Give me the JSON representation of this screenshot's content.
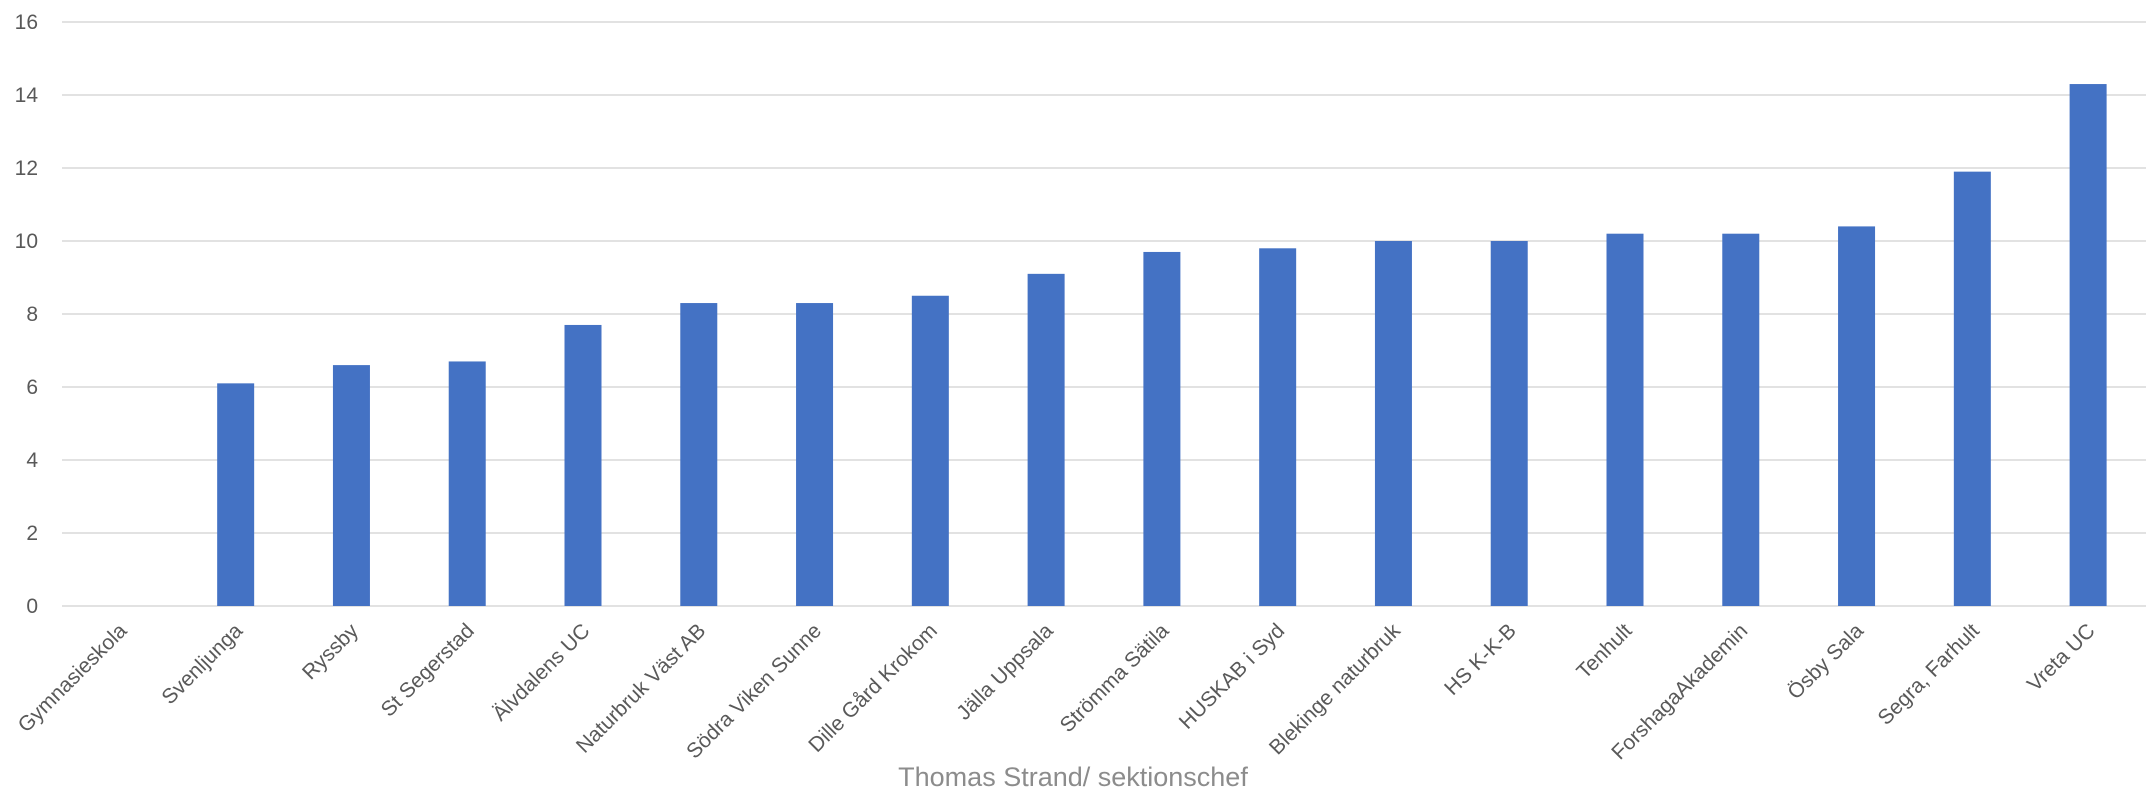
{
  "footer_text": "Thomas Strand/ sektionschef",
  "chart_data": {
    "type": "bar",
    "title": "",
    "xlabel": "",
    "ylabel": "",
    "ylim": [
      0,
      16
    ],
    "yticks": [
      0,
      2,
      4,
      6,
      8,
      10,
      12,
      14,
      16
    ],
    "grid": true,
    "bar_color": "#4472c4",
    "categories": [
      "Gymnasieskola",
      "Svenljunga",
      "Ryssby",
      "St Segerstad",
      "Älvdalens UC",
      "Naturbruk Väst AB",
      "Södra Viken Sunne",
      "Dille Gård Krokom",
      "Jälla Uppsala",
      "Strömma Sätila",
      "HUSKAB i Syd",
      "Blekinge naturbruk",
      "HS K-K-B",
      "Tenhult",
      "ForshagaAkademin",
      "Ösby Sala",
      "Segra, Farhult",
      "Vreta UC"
    ],
    "values": [
      0,
      6.1,
      6.6,
      6.7,
      7.7,
      8.3,
      8.3,
      8.5,
      9.1,
      9.7,
      9.8,
      10.0,
      10.0,
      10.2,
      10.2,
      10.4,
      11.9,
      14.3
    ]
  }
}
